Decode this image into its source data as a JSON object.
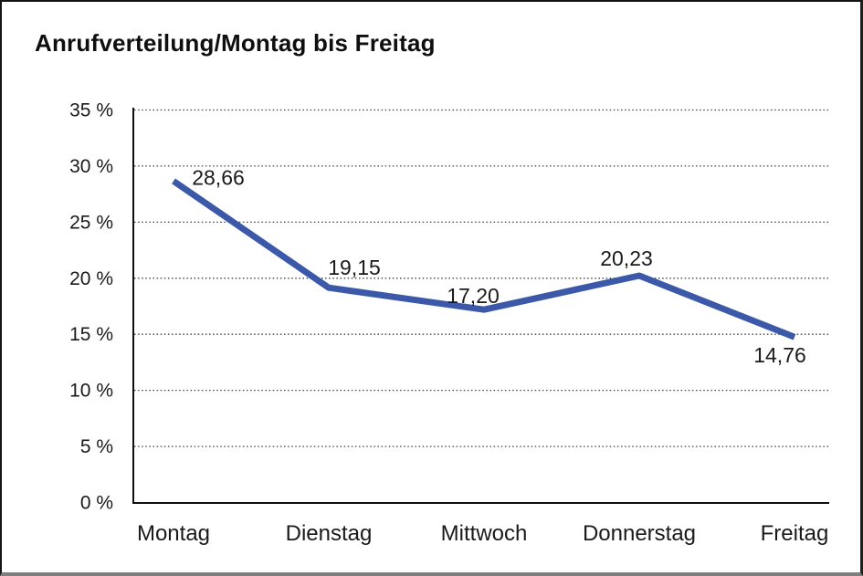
{
  "title": "Anrufverteilung/Montag bis Freitag",
  "chart_data": {
    "type": "line",
    "title": "Anrufverteilung/Montag bis Freitag",
    "categories": [
      "Montag",
      "Dienstag",
      "Mittwoch",
      "Donnerstag",
      "Freitag"
    ],
    "values": [
      28.66,
      19.15,
      17.2,
      20.23,
      14.76
    ],
    "point_labels": [
      "28,66",
      "19,15",
      "17,20",
      "20,23",
      "14,76"
    ],
    "y_ticks": [
      0,
      5,
      10,
      15,
      20,
      25,
      30,
      35
    ],
    "y_tick_labels": [
      "0 %",
      "5 %",
      "10 %",
      "15 %",
      "20 %",
      "25 %",
      "30 %",
      "35 %"
    ],
    "ylim": [
      0,
      35
    ],
    "xlabel": "",
    "ylabel": "",
    "grid": "horizontal-dotted",
    "legend": "none",
    "line_color": "#3B59A8",
    "axis_color": "#0f0f0f",
    "gridline_color": "#3f3f3f",
    "label_color": "#1a1a1a"
  }
}
